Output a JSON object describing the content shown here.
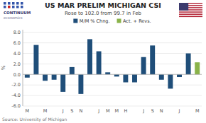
{
  "chart_data": {
    "type": "bar",
    "title": "US MAR PRELIM MICHIGAN CSI",
    "subtitle": "Rose to 102.0 from 99.7 in Feb",
    "source": "Source: University of Michigan",
    "annotations": [
      "CONTINUUM",
      "economics"
    ],
    "ylabel": "%",
    "categories": [
      "M",
      null,
      "M",
      null,
      "J",
      "S",
      "N",
      null,
      "J",
      "M",
      "M",
      "H",
      null,
      "J",
      "S",
      "N",
      null,
      "J",
      null,
      "M"
    ],
    "series": [
      {
        "name": "M/M % Chng.",
        "color": "#1f4e79",
        "values": [
          -0.6,
          5.6,
          -1.2,
          -1.0,
          -3.3,
          1.4,
          -3.7,
          6.7,
          4.4,
          0.4,
          -0.4,
          -1.5,
          -1.5,
          3.3,
          5.5,
          -1.0,
          -2.7,
          -0.5,
          4.0,
          null
        ]
      },
      {
        "name": "Act. + Revs.",
        "color": "#8ab34a",
        "values": [
          null,
          null,
          null,
          null,
          null,
          null,
          null,
          null,
          null,
          null,
          null,
          null,
          null,
          null,
          null,
          null,
          null,
          null,
          null,
          2.3
        ]
      }
    ],
    "ylim": [
      -6.0,
      8.5
    ],
    "yticks": [
      {
        "value": -6.0,
        "label": "-6.0"
      },
      {
        "value": -4.0,
        "label": "-4.0"
      },
      {
        "value": -2.0,
        "label": "-2.0"
      },
      {
        "value": 0.0,
        "label": "0.0"
      },
      {
        "value": 2.0,
        "label": "2.0"
      },
      {
        "value": 4.0,
        "label": "4.0"
      },
      {
        "value": 6.0,
        "label": "6.0"
      },
      {
        "value": 8.0,
        "label": "8.0"
      }
    ],
    "grid": true,
    "legend": "top"
  }
}
